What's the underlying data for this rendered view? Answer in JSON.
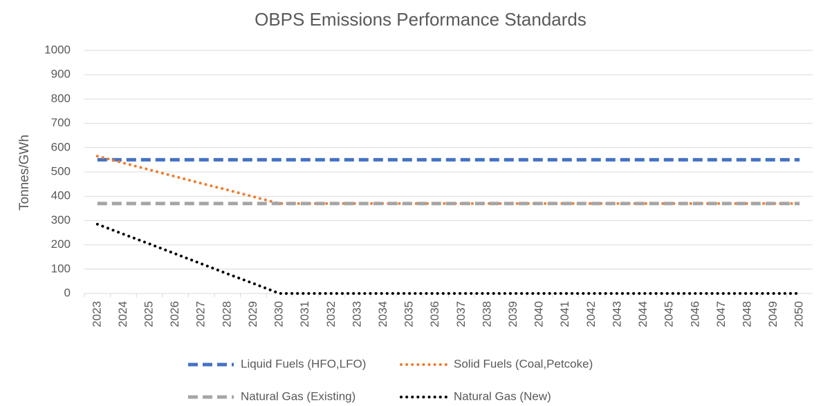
{
  "chart_data": {
    "type": "line",
    "title": "OBPS Emissions Performance Standards",
    "y_label": "Tonnes/GWh",
    "categories": [
      "2023",
      "2024",
      "2025",
      "2026",
      "2027",
      "2028",
      "2029",
      "2030",
      "2031",
      "2032",
      "2033",
      "2034",
      "2035",
      "2036",
      "2037",
      "2038",
      "2039",
      "2040",
      "2041",
      "2042",
      "2043",
      "2044",
      "2045",
      "2046",
      "2047",
      "2048",
      "2049",
      "2050"
    ],
    "series": [
      {
        "name": "Liquid Fuels (HFO,LFO)",
        "color": "#4472c4",
        "style": "dashed",
        "values": [
          550,
          550,
          550,
          550,
          550,
          550,
          550,
          550,
          550,
          550,
          550,
          550,
          550,
          550,
          550,
          550,
          550,
          550,
          550,
          550,
          550,
          550,
          550,
          550,
          550,
          550,
          550,
          550
        ]
      },
      {
        "name": "Solid Fuels (Coal,Petcoke)",
        "color": "#ed7d31",
        "style": "dotted",
        "values": [
          565,
          537,
          509,
          481,
          453,
          426,
          398,
          370,
          370,
          370,
          370,
          370,
          370,
          370,
          370,
          370,
          370,
          370,
          370,
          370,
          370,
          370,
          370,
          370,
          370,
          370,
          370,
          370
        ]
      },
      {
        "name": "Natural Gas (Existing)",
        "color": "#a5a5a5",
        "style": "dashed",
        "values": [
          370,
          370,
          370,
          370,
          370,
          370,
          370,
          370,
          370,
          370,
          370,
          370,
          370,
          370,
          370,
          370,
          370,
          370,
          370,
          370,
          370,
          370,
          370,
          370,
          370,
          370,
          370,
          370
        ]
      },
      {
        "name": "Natural Gas (New)",
        "color": "#000000",
        "style": "dotted",
        "values": [
          285,
          244,
          204,
          163,
          122,
          81,
          41,
          0,
          0,
          0,
          0,
          0,
          0,
          0,
          0,
          0,
          0,
          0,
          0,
          0,
          0,
          0,
          0,
          0,
          0,
          0,
          0,
          0
        ]
      }
    ],
    "ylim": [
      0,
      1000
    ],
    "yticks": [
      0,
      100,
      200,
      300,
      400,
      500,
      600,
      700,
      800,
      900,
      1000
    ],
    "grid": true
  }
}
